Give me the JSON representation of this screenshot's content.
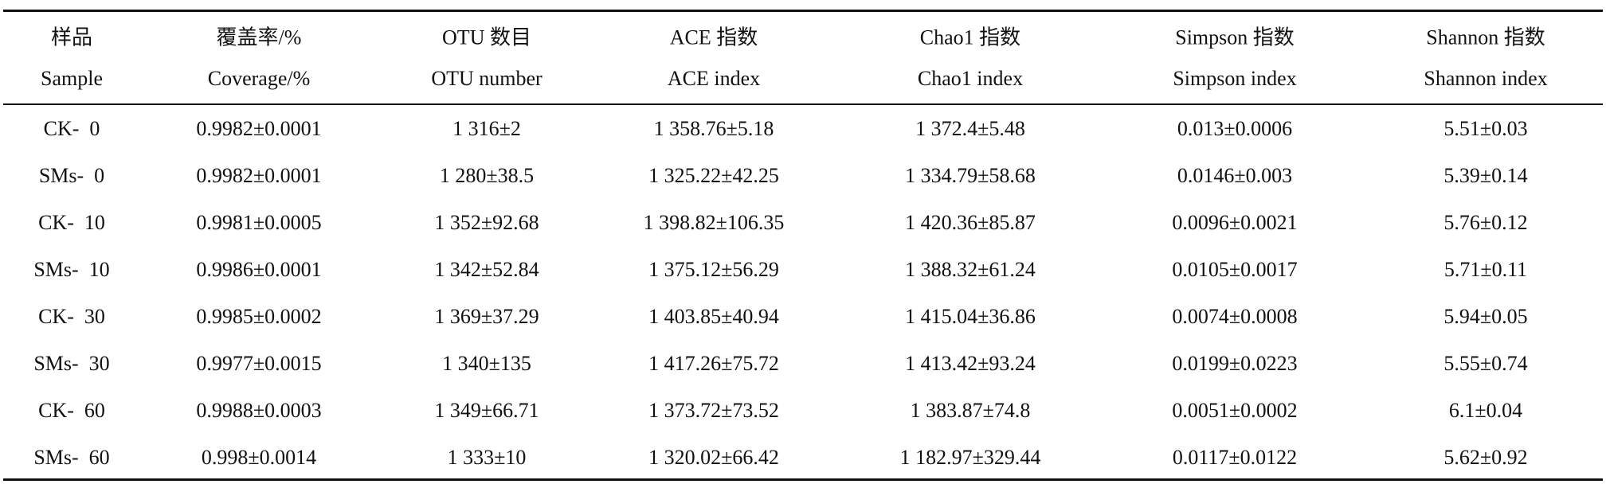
{
  "table": {
    "columns": [
      {
        "zh": "样品",
        "en": "Sample"
      },
      {
        "zh": "覆盖率/%",
        "en": "Coverage/%"
      },
      {
        "zh": "OTU 数目",
        "en": "OTU number"
      },
      {
        "zh": "ACE 指数",
        "en": "ACE index"
      },
      {
        "zh": "Chao1 指数",
        "en": "Chao1 index"
      },
      {
        "zh": "Simpson 指数",
        "en": "Simpson index"
      },
      {
        "zh": "Shannon 指数",
        "en": "Shannon index"
      }
    ],
    "rows": [
      [
        "CK-  0",
        "0.9982±0.0001",
        "1 316±2",
        "1 358.76±5.18",
        "1 372.4±5.48",
        "0.013±0.0006",
        "5.51±0.03"
      ],
      [
        "SMs-  0",
        "0.9982±0.0001",
        "1 280±38.5",
        "1 325.22±42.25",
        "1 334.79±58.68",
        "0.0146±0.003",
        "5.39±0.14"
      ],
      [
        "CK-  10",
        "0.9981±0.0005",
        "1 352±92.68",
        "1 398.82±106.35",
        "1 420.36±85.87",
        "0.0096±0.0021",
        "5.76±0.12"
      ],
      [
        "SMs-  10",
        "0.9986±0.0001",
        "1 342±52.84",
        "1 375.12±56.29",
        "1 388.32±61.24",
        "0.0105±0.0017",
        "5.71±0.11"
      ],
      [
        "CK-  30",
        "0.9985±0.0002",
        "1 369±37.29",
        "1 403.85±40.94",
        "1 415.04±36.86",
        "0.0074±0.0008",
        "5.94±0.05"
      ],
      [
        "SMs-  30",
        "0.9977±0.0015",
        "1 340±135",
        "1 417.26±75.72",
        "1 413.42±93.24",
        "0.0199±0.0223",
        "5.55±0.74"
      ],
      [
        "CK-  60",
        "0.9988±0.0003",
        "1 349±66.71",
        "1 373.72±73.52",
        "1 383.87±74.8",
        "0.0051±0.0002",
        "6.1±0.04"
      ],
      [
        "SMs-  60",
        "0.998±0.0014",
        "1 333±10",
        "1 320.02±66.42",
        "1 182.97±329.44",
        "0.0117±0.0122",
        "5.62±0.92"
      ]
    ]
  }
}
